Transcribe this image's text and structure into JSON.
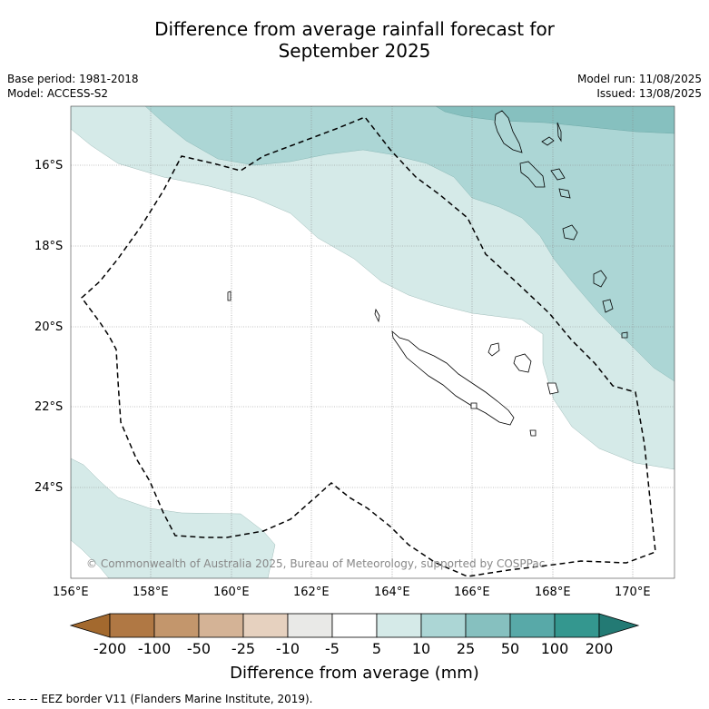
{
  "title": {
    "line1": "Difference from average rainfall forecast for",
    "line2": "September 2025"
  },
  "meta": {
    "base_period": "Base period: 1981-2018",
    "model": "Model: ACCESS-S2",
    "model_run": "Model run: 11/08/2025",
    "issued": "Issued: 13/08/2025"
  },
  "map": {
    "lat_labels": [
      "16°S",
      "18°S",
      "20°S",
      "22°S",
      "24°S"
    ],
    "lon_labels": [
      "156°E",
      "158°E",
      "160°E",
      "162°E",
      "164°E",
      "166°E",
      "168°E",
      "170°E"
    ],
    "copyright": "© Commonwealth of Australia 2025, Bureau of Meteorology, supported by COSPPac",
    "colors": {
      "band_5_10": "#d5eae8",
      "band_10_25": "#acd6d5",
      "band_25_50": "#86c0bf"
    }
  },
  "colorbar": {
    "labels": [
      "-200",
      "-100",
      "-50",
      "-25",
      "-10",
      "-5",
      "5",
      "10",
      "25",
      "50",
      "100",
      "200"
    ],
    "colors": [
      "#a3692e",
      "#b07844",
      "#c3966c",
      "#d4b396",
      "#e6d1bf",
      "#e9e9e7",
      "#ffffff",
      "#d5eae8",
      "#acd6d5",
      "#86c0bf",
      "#58a9a8",
      "#34978f",
      "#237a74"
    ],
    "title": "Difference from average (mm)"
  },
  "footer": "--  --  -- EEZ border V11 (Flanders Marine Institute, 2019)."
}
